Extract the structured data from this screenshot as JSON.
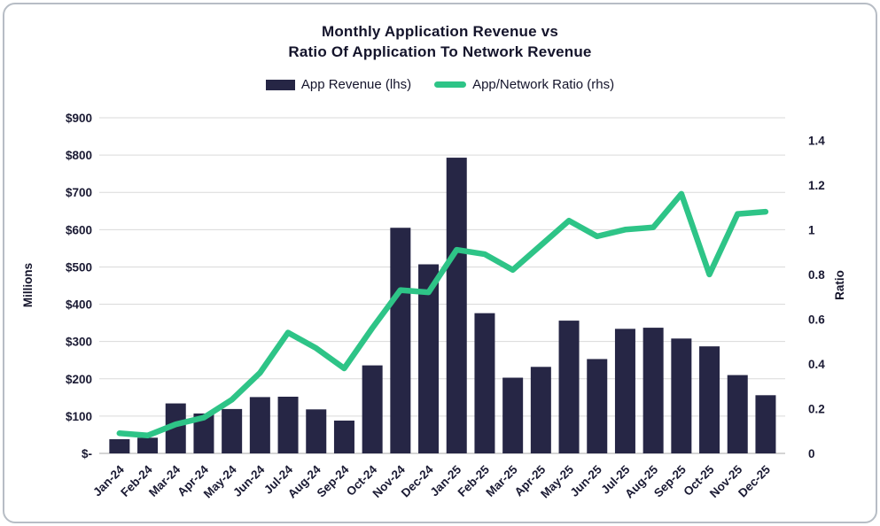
{
  "card": {
    "title_line1": "Monthly Application Revenue vs",
    "title_line2": "Ratio Of Application To Network Revenue"
  },
  "legend": {
    "items": [
      {
        "label": "App Revenue (lhs)",
        "color": "#262645",
        "swatch": "rect"
      },
      {
        "label": "App/Network Ratio (rhs)",
        "color": "#2ec487",
        "swatch": "line"
      }
    ]
  },
  "chart_data": {
    "type": "combo",
    "title": "Monthly Application Revenue vs Ratio Of Application To Network Revenue",
    "categories": [
      "Jan-24",
      "Feb-24",
      "Mar-24",
      "Apr-24",
      "May-24",
      "Jun-24",
      "Jul-24",
      "Aug-24",
      "Sep-24",
      "Oct-24",
      "Nov-24",
      "Dec-24",
      "Jan-25",
      "Feb-25",
      "Mar-25",
      "Apr-25",
      "May-25",
      "Jun-25",
      "Jul-25",
      "Aug-25",
      "Sep-25",
      "Oct-25",
      "Nov-25",
      "Dec-25"
    ],
    "series": [
      {
        "name": "App Revenue (lhs)",
        "type": "bar",
        "axis": "left",
        "color": "#262645",
        "values": [
          38,
          42,
          134,
          107,
          119,
          151,
          152,
          118,
          88,
          236,
          605,
          507,
          793,
          376,
          203,
          232,
          356,
          253,
          334,
          337,
          308,
          287,
          210,
          156
        ]
      },
      {
        "name": "App/Network Ratio (rhs)",
        "type": "line",
        "axis": "right",
        "color": "#2ec487",
        "values": [
          0.09,
          0.08,
          0.13,
          0.16,
          0.24,
          0.36,
          0.54,
          0.47,
          0.38,
          0.56,
          0.73,
          0.72,
          0.91,
          0.89,
          0.82,
          0.93,
          1.04,
          0.97,
          1.0,
          1.01,
          1.16,
          0.8,
          1.07,
          1.08
        ]
      }
    ],
    "left_axis": {
      "label": "Millions",
      "tick_labels": [
        "$900",
        "$800",
        "$700",
        "$600",
        "$500",
        "$400",
        "$300",
        "$200",
        "$100",
        "$-"
      ],
      "min": 0,
      "max": 900,
      "step": 100
    },
    "right_axis": {
      "label": "Ratio",
      "tick_labels": [
        "1.4",
        "1.2",
        "1",
        "0.8",
        "0.6",
        "0.4",
        "0.2",
        "0"
      ],
      "min": 0,
      "max_label": 1.4,
      "step": 0.2,
      "left_value_at_ratio_1": 600
    },
    "grid": "horizontal",
    "legend_position": "top"
  },
  "colors": {
    "grid": "#dadada",
    "baseline": "#c6c6c6",
    "text": "#14142b",
    "card_border": "#b7bdc5",
    "background": "#ffffff"
  }
}
